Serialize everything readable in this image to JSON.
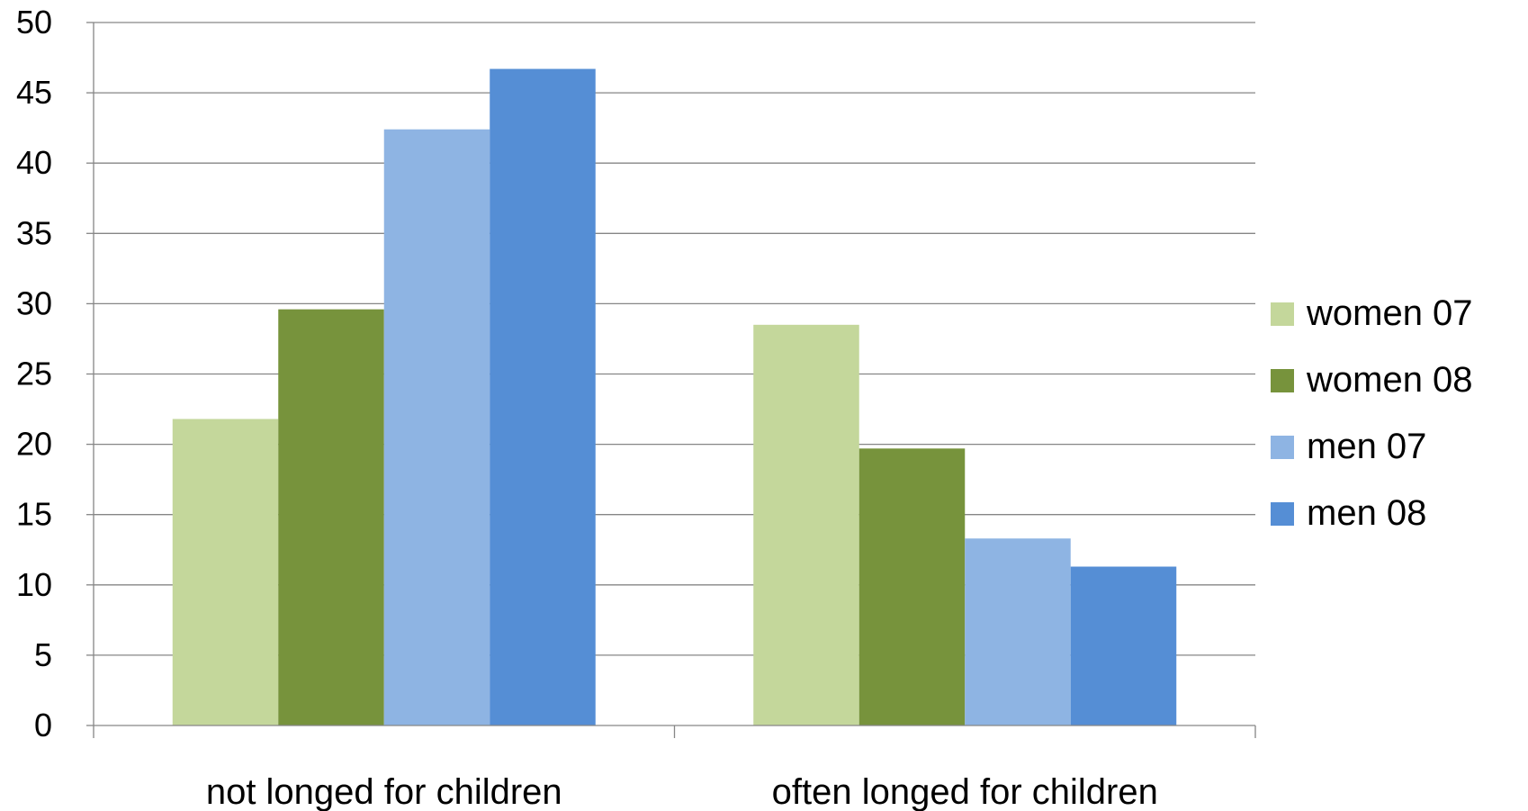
{
  "chart_data": {
    "type": "bar",
    "title": "",
    "xlabel": "",
    "ylabel": "",
    "ylim": [
      0,
      50
    ],
    "yticks": [
      0,
      5,
      10,
      15,
      20,
      25,
      30,
      35,
      40,
      45,
      50
    ],
    "grid": true,
    "legend_position": "right",
    "categories": [
      "not longed for children",
      "often longed for children"
    ],
    "series": [
      {
        "name": "women 07",
        "values": [
          21.8,
          28.5
        ],
        "color": "#C4D79B"
      },
      {
        "name": "women 08",
        "values": [
          29.6,
          19.7
        ],
        "color": "#77933C"
      },
      {
        "name": "men 07",
        "values": [
          42.4,
          13.3
        ],
        "color": "#8EB4E3"
      },
      {
        "name": "men 08",
        "values": [
          46.7,
          11.3
        ],
        "color": "#558ED5"
      }
    ]
  }
}
